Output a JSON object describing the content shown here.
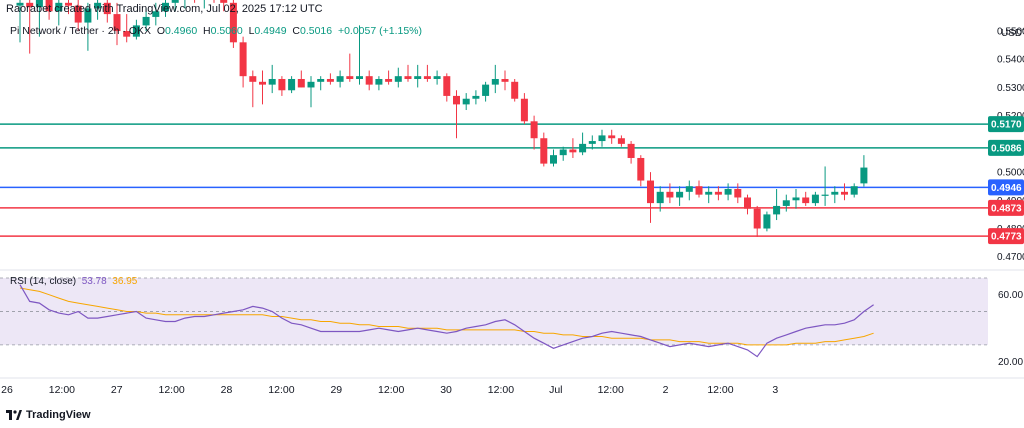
{
  "credit": "Raorabet created with TradingView.com, Jul 02, 2025 17:12 UTC",
  "info": {
    "symbol": "Pi Network / Tether · 2h · OKX",
    "o_label": "O",
    "o_value": "0.4960",
    "h_label": "H",
    "h_value": "0.5060",
    "l_label": "L",
    "l_value": "0.4949",
    "c_label": "C",
    "c_value": "0.5016",
    "change": "+0.0057 (+1.15%)"
  },
  "rsi_label": {
    "name": "RSI (14, close)",
    "rsi_value": "53.78",
    "ma_value": "36.95"
  },
  "brand": "TradingView",
  "colors": {
    "up": "#089981",
    "down": "#f23645",
    "rsi": "#7e57c2",
    "rsi_ma": "#f7a600",
    "blue_level": "#2962ff",
    "rsi_band": "#ede7f6"
  },
  "chart_data": [
    {
      "type": "candlestick",
      "title": "Pi Network / Tether · 2h · OKX",
      "currency": "USDT",
      "ylim": [
        0.466,
        0.561
      ],
      "y_ticks": [
        "0.5500",
        "0.5400",
        "0.5300",
        "0.5200",
        "0.5100",
        "0.5000",
        "0.4900",
        "0.4800",
        "0.4700"
      ],
      "x_ticks": [
        "26",
        "12:00",
        "27",
        "12:00",
        "28",
        "12:00",
        "29",
        "12:00",
        "30",
        "12:00",
        "Jul",
        "12:00",
        "2",
        "12:00",
        "3"
      ],
      "horizontal_levels": [
        {
          "value": 0.517,
          "label": "0.5170",
          "color": "#089981"
        },
        {
          "value": 0.5086,
          "label": "0.5086",
          "color": "#089981"
        },
        {
          "value": 0.4946,
          "label": "0.4946",
          "color": "#2962ff"
        },
        {
          "value": 0.4873,
          "label": "0.4873",
          "color": "#f23645"
        },
        {
          "value": 0.4773,
          "label": "0.4773",
          "color": "#f23645"
        }
      ],
      "candles": [
        {
          "o": 0.559,
          "h": 0.564,
          "l": 0.546,
          "c": 0.56
        },
        {
          "o": 0.56,
          "h": 0.565,
          "l": 0.542,
          "c": 0.5585
        },
        {
          "o": 0.5585,
          "h": 0.564,
          "l": 0.548,
          "c": 0.561
        },
        {
          "o": 0.561,
          "h": 0.565,
          "l": 0.554,
          "c": 0.557
        },
        {
          "o": 0.557,
          "h": 0.563,
          "l": 0.552,
          "c": 0.56
        },
        {
          "o": 0.56,
          "h": 0.565,
          "l": 0.556,
          "c": 0.559
        },
        {
          "o": 0.559,
          "h": 0.564,
          "l": 0.55,
          "c": 0.553
        },
        {
          "o": 0.553,
          "h": 0.56,
          "l": 0.543,
          "c": 0.558
        },
        {
          "o": 0.558,
          "h": 0.564,
          "l": 0.554,
          "c": 0.56
        },
        {
          "o": 0.56,
          "h": 0.564,
          "l": 0.553,
          "c": 0.556
        },
        {
          "o": 0.556,
          "h": 0.56,
          "l": 0.545,
          "c": 0.55
        },
        {
          "o": 0.55,
          "h": 0.556,
          "l": 0.546,
          "c": 0.548
        },
        {
          "o": 0.548,
          "h": 0.554,
          "l": 0.547,
          "c": 0.552
        },
        {
          "o": 0.552,
          "h": 0.558,
          "l": 0.55,
          "c": 0.555
        },
        {
          "o": 0.555,
          "h": 0.56,
          "l": 0.552,
          "c": 0.557
        },
        {
          "o": 0.557,
          "h": 0.562,
          "l": 0.555,
          "c": 0.56
        },
        {
          "o": 0.56,
          "h": 0.565,
          "l": 0.557,
          "c": 0.562
        },
        {
          "o": 0.562,
          "h": 0.565,
          "l": 0.558,
          "c": 0.563
        },
        {
          "o": 0.563,
          "h": 0.565,
          "l": 0.56,
          "c": 0.561
        },
        {
          "o": 0.561,
          "h": 0.565,
          "l": 0.558,
          "c": 0.563
        },
        {
          "o": 0.563,
          "h": 0.565,
          "l": 0.56,
          "c": 0.562
        },
        {
          "o": 0.562,
          "h": 0.565,
          "l": 0.557,
          "c": 0.56
        },
        {
          "o": 0.56,
          "h": 0.562,
          "l": 0.544,
          "c": 0.546
        },
        {
          "o": 0.546,
          "h": 0.548,
          "l": 0.53,
          "c": 0.534
        },
        {
          "o": 0.534,
          "h": 0.536,
          "l": 0.523,
          "c": 0.532
        },
        {
          "o": 0.532,
          "h": 0.536,
          "l": 0.524,
          "c": 0.531
        },
        {
          "o": 0.531,
          "h": 0.538,
          "l": 0.528,
          "c": 0.533
        },
        {
          "o": 0.533,
          "h": 0.534,
          "l": 0.527,
          "c": 0.529
        },
        {
          "o": 0.529,
          "h": 0.534,
          "l": 0.528,
          "c": 0.533
        },
        {
          "o": 0.533,
          "h": 0.536,
          "l": 0.53,
          "c": 0.53
        },
        {
          "o": 0.53,
          "h": 0.534,
          "l": 0.523,
          "c": 0.532
        },
        {
          "o": 0.532,
          "h": 0.534,
          "l": 0.529,
          "c": 0.533
        },
        {
          "o": 0.533,
          "h": 0.535,
          "l": 0.531,
          "c": 0.532
        },
        {
          "o": 0.532,
          "h": 0.536,
          "l": 0.53,
          "c": 0.534
        },
        {
          "o": 0.534,
          "h": 0.542,
          "l": 0.532,
          "c": 0.533
        },
        {
          "o": 0.533,
          "h": 0.552,
          "l": 0.531,
          "c": 0.534
        },
        {
          "o": 0.534,
          "h": 0.536,
          "l": 0.529,
          "c": 0.531
        },
        {
          "o": 0.531,
          "h": 0.534,
          "l": 0.529,
          "c": 0.533
        },
        {
          "o": 0.533,
          "h": 0.536,
          "l": 0.531,
          "c": 0.532
        },
        {
          "o": 0.532,
          "h": 0.537,
          "l": 0.53,
          "c": 0.534
        },
        {
          "o": 0.534,
          "h": 0.538,
          "l": 0.532,
          "c": 0.533
        },
        {
          "o": 0.533,
          "h": 0.538,
          "l": 0.53,
          "c": 0.534
        },
        {
          "o": 0.534,
          "h": 0.538,
          "l": 0.532,
          "c": 0.533
        },
        {
          "o": 0.533,
          "h": 0.536,
          "l": 0.531,
          "c": 0.534
        },
        {
          "o": 0.534,
          "h": 0.535,
          "l": 0.525,
          "c": 0.527
        },
        {
          "o": 0.527,
          "h": 0.529,
          "l": 0.512,
          "c": 0.524
        },
        {
          "o": 0.524,
          "h": 0.528,
          "l": 0.522,
          "c": 0.526
        },
        {
          "o": 0.526,
          "h": 0.529,
          "l": 0.524,
          "c": 0.527
        },
        {
          "o": 0.527,
          "h": 0.532,
          "l": 0.525,
          "c": 0.531
        },
        {
          "o": 0.531,
          "h": 0.538,
          "l": 0.528,
          "c": 0.533
        },
        {
          "o": 0.533,
          "h": 0.536,
          "l": 0.529,
          "c": 0.532
        },
        {
          "o": 0.532,
          "h": 0.533,
          "l": 0.525,
          "c": 0.526
        },
        {
          "o": 0.526,
          "h": 0.528,
          "l": 0.517,
          "c": 0.518
        },
        {
          "o": 0.518,
          "h": 0.52,
          "l": 0.508,
          "c": 0.512
        },
        {
          "o": 0.512,
          "h": 0.514,
          "l": 0.502,
          "c": 0.503
        },
        {
          "o": 0.503,
          "h": 0.508,
          "l": 0.502,
          "c": 0.506
        },
        {
          "o": 0.506,
          "h": 0.509,
          "l": 0.504,
          "c": 0.508
        },
        {
          "o": 0.508,
          "h": 0.512,
          "l": 0.505,
          "c": 0.507
        },
        {
          "o": 0.507,
          "h": 0.514,
          "l": 0.506,
          "c": 0.51
        },
        {
          "o": 0.51,
          "h": 0.513,
          "l": 0.508,
          "c": 0.511
        },
        {
          "o": 0.511,
          "h": 0.515,
          "l": 0.509,
          "c": 0.513
        },
        {
          "o": 0.513,
          "h": 0.515,
          "l": 0.51,
          "c": 0.512
        },
        {
          "o": 0.512,
          "h": 0.513,
          "l": 0.509,
          "c": 0.51
        },
        {
          "o": 0.51,
          "h": 0.511,
          "l": 0.503,
          "c": 0.505
        },
        {
          "o": 0.505,
          "h": 0.506,
          "l": 0.495,
          "c": 0.497
        },
        {
          "o": 0.497,
          "h": 0.5,
          "l": 0.482,
          "c": 0.489
        },
        {
          "o": 0.489,
          "h": 0.495,
          "l": 0.486,
          "c": 0.493
        },
        {
          "o": 0.493,
          "h": 0.496,
          "l": 0.489,
          "c": 0.491
        },
        {
          "o": 0.491,
          "h": 0.495,
          "l": 0.488,
          "c": 0.493
        },
        {
          "o": 0.493,
          "h": 0.497,
          "l": 0.49,
          "c": 0.495
        },
        {
          "o": 0.495,
          "h": 0.497,
          "l": 0.491,
          "c": 0.492
        },
        {
          "o": 0.492,
          "h": 0.495,
          "l": 0.489,
          "c": 0.493
        },
        {
          "o": 0.493,
          "h": 0.495,
          "l": 0.49,
          "c": 0.492
        },
        {
          "o": 0.492,
          "h": 0.496,
          "l": 0.49,
          "c": 0.494
        },
        {
          "o": 0.494,
          "h": 0.496,
          "l": 0.489,
          "c": 0.491
        },
        {
          "o": 0.491,
          "h": 0.492,
          "l": 0.485,
          "c": 0.487
        },
        {
          "o": 0.487,
          "h": 0.488,
          "l": 0.477,
          "c": 0.48
        },
        {
          "o": 0.48,
          "h": 0.486,
          "l": 0.479,
          "c": 0.485
        },
        {
          "o": 0.485,
          "h": 0.494,
          "l": 0.483,
          "c": 0.488
        },
        {
          "o": 0.488,
          "h": 0.492,
          "l": 0.486,
          "c": 0.49
        },
        {
          "o": 0.49,
          "h": 0.494,
          "l": 0.487,
          "c": 0.491
        },
        {
          "o": 0.491,
          "h": 0.493,
          "l": 0.488,
          "c": 0.489
        },
        {
          "o": 0.489,
          "h": 0.493,
          "l": 0.488,
          "c": 0.492
        },
        {
          "o": 0.492,
          "h": 0.502,
          "l": 0.488,
          "c": 0.492
        },
        {
          "o": 0.492,
          "h": 0.495,
          "l": 0.489,
          "c": 0.493
        },
        {
          "o": 0.493,
          "h": 0.496,
          "l": 0.49,
          "c": 0.492
        },
        {
          "o": 0.492,
          "h": 0.496,
          "l": 0.491,
          "c": 0.495
        },
        {
          "o": 0.496,
          "h": 0.506,
          "l": 0.4949,
          "c": 0.5016
        }
      ]
    },
    {
      "type": "line",
      "title": "RSI (14, close)",
      "ylim": [
        15,
        70
      ],
      "y_ticks": [
        "60.00",
        "20.00"
      ],
      "band": [
        30,
        70
      ],
      "dashed_levels": [
        70,
        50,
        30
      ],
      "series": [
        {
          "name": "RSI",
          "values": [
            66,
            56,
            55,
            51,
            49,
            48,
            50,
            46,
            46,
            47,
            48,
            49,
            50,
            46,
            45,
            44,
            44,
            46,
            47,
            47,
            48,
            49,
            50,
            51,
            53,
            52,
            50,
            46,
            43,
            42,
            40,
            38,
            38,
            38,
            38,
            38,
            39,
            40,
            39,
            38,
            39,
            40,
            39,
            38,
            37,
            38,
            40,
            41,
            42,
            44,
            45,
            42,
            38,
            34,
            31,
            28,
            30,
            32,
            34,
            35,
            37,
            38,
            37,
            36,
            35,
            33,
            31,
            29,
            30,
            31,
            30,
            29,
            30,
            31,
            29,
            27,
            23,
            31,
            34,
            36,
            38,
            40,
            41,
            42,
            42,
            43,
            45,
            50,
            54
          ]
        },
        {
          "name": "MA",
          "values": [
            64,
            63,
            62,
            60,
            58,
            56,
            55,
            54,
            53,
            52,
            51,
            50,
            50,
            49,
            49,
            48,
            48,
            48,
            48,
            48,
            48,
            48,
            48,
            48,
            48,
            48,
            47,
            47,
            46,
            45,
            45,
            44,
            44,
            43,
            43,
            42,
            42,
            41,
            41,
            41,
            40,
            40,
            40,
            40,
            39,
            39,
            39,
            39,
            39,
            39,
            39,
            39,
            38,
            38,
            37,
            37,
            36,
            36,
            35,
            35,
            35,
            34,
            34,
            34,
            34,
            33,
            33,
            33,
            32,
            32,
            32,
            31,
            31,
            31,
            31,
            30,
            30,
            30,
            30,
            30,
            31,
            31,
            31,
            32,
            32,
            33,
            34,
            35,
            37
          ]
        }
      ]
    }
  ]
}
